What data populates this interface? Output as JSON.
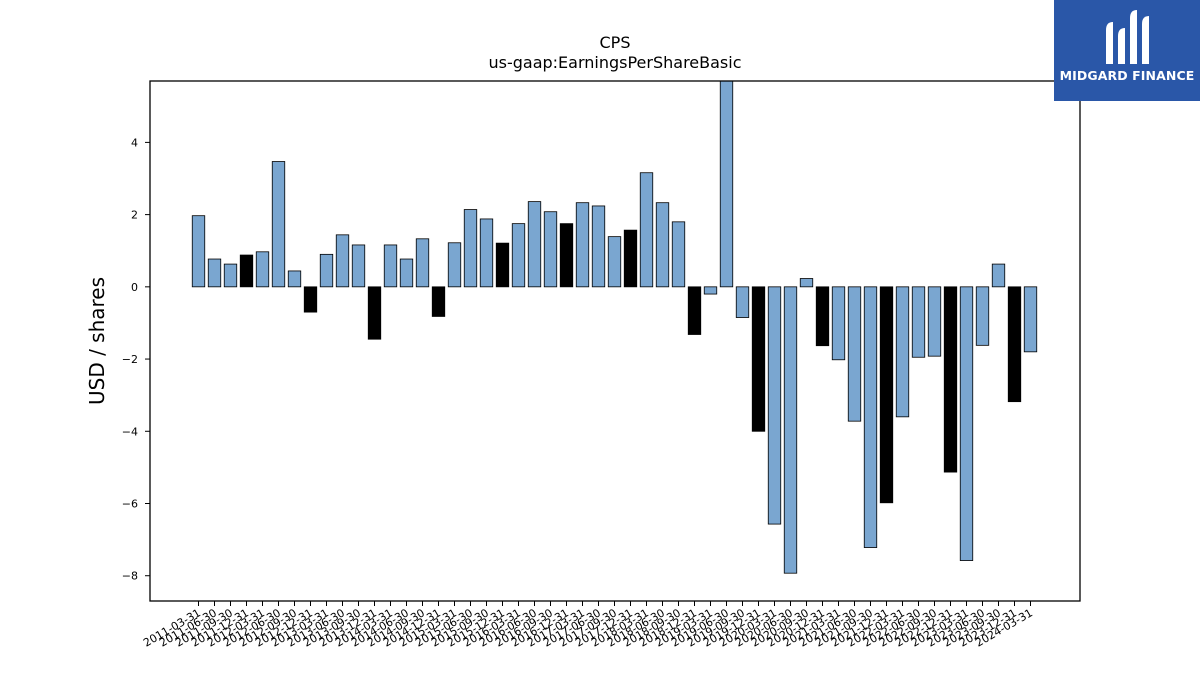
{
  "logo": {
    "text": "MIDGARD FINANCE"
  },
  "chart_data": {
    "type": "bar",
    "title": "CPS",
    "subtitle": "us-gaap:EarningsPerShareBasic",
    "xlabel": "",
    "ylabel": "USD / shares",
    "ylim": [
      -8.7,
      5.7
    ],
    "yticks": [
      -8,
      -6,
      -4,
      -2,
      0,
      2,
      4
    ],
    "grid": false,
    "colors": {
      "quarter": "#7aa6d0",
      "annual": "#000000",
      "edge": "#000000"
    },
    "categories": [
      "2011-03-31",
      "2011-06-30",
      "2011-09-30",
      "2011-12-31",
      "2012-03-31",
      "2012-06-30",
      "2012-09-30",
      "2012-12-31",
      "2013-03-31",
      "2013-06-30",
      "2013-09-30",
      "2013-12-31",
      "2014-03-31",
      "2014-06-30",
      "2014-09-30",
      "2014-12-31",
      "2015-03-31",
      "2015-06-30",
      "2015-09-30",
      "2015-12-31",
      "2016-03-31",
      "2016-06-30",
      "2016-09-30",
      "2016-12-31",
      "2017-03-31",
      "2017-06-30",
      "2017-09-30",
      "2017-12-31",
      "2018-03-31",
      "2018-06-30",
      "2018-09-30",
      "2018-12-31",
      "2019-03-31",
      "2019-06-30",
      "2019-09-30",
      "2019-12-31",
      "2020-03-31",
      "2020-06-30",
      "2020-09-30",
      "2020-12-31",
      "2021-03-31",
      "2021-06-30",
      "2021-09-30",
      "2021-12-31",
      "2022-03-31",
      "2022-06-30",
      "2022-09-30",
      "2022-12-31",
      "2023-03-31",
      "2023-06-30",
      "2023-09-30",
      "2023-12-31",
      "2024-03-31"
    ],
    "values": [
      1.97,
      0.77,
      0.63,
      0.88,
      0.97,
      3.47,
      0.44,
      -0.7,
      0.9,
      1.44,
      1.16,
      -1.45,
      1.16,
      0.77,
      1.33,
      -0.82,
      1.22,
      2.14,
      1.88,
      1.21,
      1.75,
      2.36,
      2.08,
      1.75,
      2.33,
      2.24,
      1.39,
      1.57,
      3.16,
      2.33,
      1.8,
      -1.32,
      -0.2,
      5.85,
      -0.85,
      -4.0,
      -6.57,
      -7.93,
      0.23,
      -1.63,
      -2.02,
      -3.72,
      -7.22,
      -5.98,
      -3.6,
      -1.95,
      -1.92,
      -5.13,
      -7.58,
      -1.62,
      0.63,
      -3.18,
      -1.8
    ],
    "annual_flags": [
      0,
      0,
      0,
      1,
      0,
      0,
      0,
      1,
      0,
      0,
      0,
      1,
      0,
      0,
      0,
      1,
      0,
      0,
      0,
      1,
      0,
      0,
      0,
      1,
      0,
      0,
      0,
      1,
      0,
      0,
      0,
      1,
      0,
      0,
      0,
      1,
      0,
      0,
      0,
      1,
      0,
      0,
      0,
      1,
      0,
      0,
      0,
      1,
      0,
      0,
      0,
      1,
      0
    ]
  }
}
